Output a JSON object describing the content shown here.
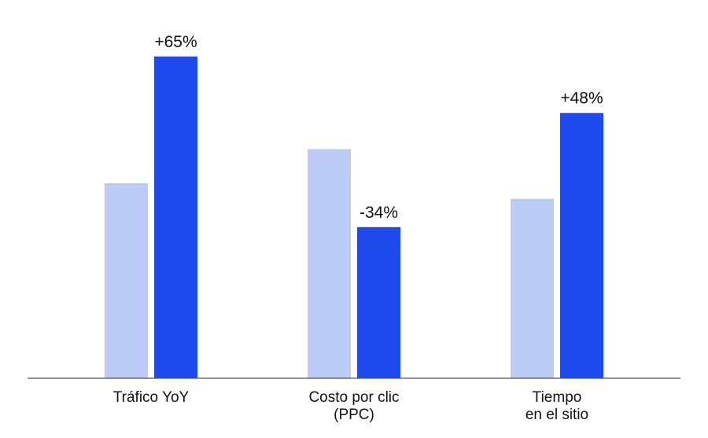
{
  "chart_data": {
    "type": "bar",
    "categories": [
      [
        "Tráfico YoY"
      ],
      [
        "Costo por clic",
        "(PPC)"
      ],
      [
        "Tiempo",
        "en el sitio"
      ]
    ],
    "series": [
      {
        "values": [
          100,
          117.5,
          92
        ],
        "color": "#bccaf6"
      },
      {
        "values": [
          165,
          77.5,
          136
        ],
        "color": "#1f4aed"
      }
    ],
    "data_labels": [
      "+65%",
      "-34%",
      "+48%"
    ],
    "ylim": [
      0,
      170
    ],
    "grid": false,
    "axis_color": "#555555"
  }
}
